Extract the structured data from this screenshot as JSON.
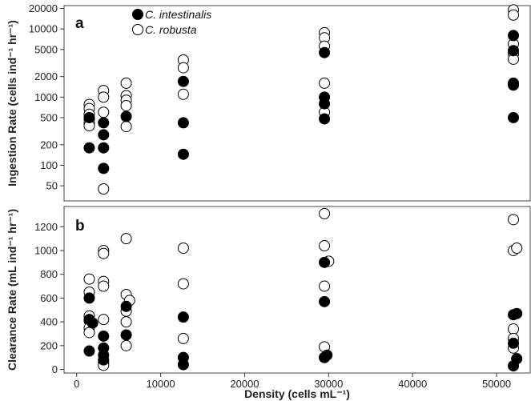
{
  "chart_data": [
    {
      "panel": "a",
      "type": "scatter",
      "ylabel": "Ingestion Rate (cells ind⁻¹ hr⁻¹)",
      "yscale": "log",
      "ylim": [
        30,
        22000
      ],
      "yticks": [
        50,
        100,
        200,
        500,
        1000,
        2000,
        5000,
        10000,
        20000
      ],
      "xlim": [
        -1500,
        54000
      ],
      "grid": false,
      "legend": "top-left",
      "series": [
        {
          "name": "C. intestinalis",
          "marker": "filled",
          "points": [
            {
              "x": 1500,
              "y": 500
            },
            {
              "x": 1500,
              "y": 180
            },
            {
              "x": 3200,
              "y": 420
            },
            {
              "x": 3200,
              "y": 280
            },
            {
              "x": 3200,
              "y": 180
            },
            {
              "x": 3200,
              "y": 90
            },
            {
              "x": 5900,
              "y": 520
            },
            {
              "x": 12700,
              "y": 1700
            },
            {
              "x": 12700,
              "y": 420
            },
            {
              "x": 12700,
              "y": 145
            },
            {
              "x": 29500,
              "y": 4500
            },
            {
              "x": 29500,
              "y": 1000
            },
            {
              "x": 29500,
              "y": 800
            },
            {
              "x": 29500,
              "y": 480
            },
            {
              "x": 52000,
              "y": 8000
            },
            {
              "x": 52000,
              "y": 4800
            },
            {
              "x": 52000,
              "y": 1600
            },
            {
              "x": 52000,
              "y": 1500
            },
            {
              "x": 52000,
              "y": 500
            }
          ]
        },
        {
          "name": "C. robusta",
          "marker": "open",
          "points": [
            {
              "x": 1500,
              "y": 780
            },
            {
              "x": 1500,
              "y": 680
            },
            {
              "x": 1500,
              "y": 560
            },
            {
              "x": 1500,
              "y": 480
            },
            {
              "x": 1500,
              "y": 420
            },
            {
              "x": 1500,
              "y": 380
            },
            {
              "x": 3200,
              "y": 1250
            },
            {
              "x": 3200,
              "y": 1000
            },
            {
              "x": 3200,
              "y": 600
            },
            {
              "x": 3200,
              "y": 45
            },
            {
              "x": 5900,
              "y": 1600
            },
            {
              "x": 5900,
              "y": 1050
            },
            {
              "x": 5900,
              "y": 900
            },
            {
              "x": 5900,
              "y": 750
            },
            {
              "x": 5900,
              "y": 370
            },
            {
              "x": 12700,
              "y": 3500
            },
            {
              "x": 12700,
              "y": 2700
            },
            {
              "x": 12700,
              "y": 1100
            },
            {
              "x": 29500,
              "y": 8800
            },
            {
              "x": 29500,
              "y": 7400
            },
            {
              "x": 29500,
              "y": 5600
            },
            {
              "x": 29500,
              "y": 1600
            },
            {
              "x": 29500,
              "y": 600
            },
            {
              "x": 52000,
              "y": 19000
            },
            {
              "x": 52000,
              "y": 16000
            },
            {
              "x": 52000,
              "y": 6000
            },
            {
              "x": 52000,
              "y": 4300
            },
            {
              "x": 52000,
              "y": 3600
            }
          ]
        }
      ]
    },
    {
      "panel": "b",
      "type": "scatter",
      "xlabel": "Density (cells mL⁻¹)",
      "ylabel": "Clearance Rate (mL ind⁻¹ hr⁻¹)",
      "ylim": [
        -30,
        1370
      ],
      "yticks": [
        0,
        200,
        400,
        600,
        800,
        1000,
        1200
      ],
      "xlim": [
        -1500,
        54000
      ],
      "xticks": [
        0,
        10000,
        20000,
        30000,
        40000,
        50000
      ],
      "grid": false,
      "series": [
        {
          "name": "C. intestinalis",
          "marker": "filled",
          "points": [
            {
              "x": 1500,
              "y": 600
            },
            {
              "x": 1500,
              "y": 420
            },
            {
              "x": 1500,
              "y": 155
            },
            {
              "x": 1900,
              "y": 390
            },
            {
              "x": 3200,
              "y": 280
            },
            {
              "x": 3200,
              "y": 180
            },
            {
              "x": 3200,
              "y": 120
            },
            {
              "x": 3200,
              "y": 80
            },
            {
              "x": 5900,
              "y": 530
            },
            {
              "x": 5900,
              "y": 290
            },
            {
              "x": 12700,
              "y": 440
            },
            {
              "x": 12700,
              "y": 100
            },
            {
              "x": 12700,
              "y": 40
            },
            {
              "x": 29500,
              "y": 900
            },
            {
              "x": 29500,
              "y": 570
            },
            {
              "x": 29800,
              "y": 120
            },
            {
              "x": 29500,
              "y": 100
            },
            {
              "x": 52000,
              "y": 460
            },
            {
              "x": 52400,
              "y": 470
            },
            {
              "x": 52000,
              "y": 220
            },
            {
              "x": 52400,
              "y": 90
            },
            {
              "x": 52000,
              "y": 30
            }
          ]
        },
        {
          "name": "C. robusta",
          "marker": "open",
          "points": [
            {
              "x": 1500,
              "y": 760
            },
            {
              "x": 1500,
              "y": 650
            },
            {
              "x": 1500,
              "y": 450
            },
            {
              "x": 1500,
              "y": 410
            },
            {
              "x": 1500,
              "y": 350
            },
            {
              "x": 1500,
              "y": 310
            },
            {
              "x": 3200,
              "y": 1000
            },
            {
              "x": 3200,
              "y": 975
            },
            {
              "x": 3200,
              "y": 740
            },
            {
              "x": 3200,
              "y": 700
            },
            {
              "x": 3200,
              "y": 420
            },
            {
              "x": 3200,
              "y": 60
            },
            {
              "x": 3200,
              "y": 35
            },
            {
              "x": 5900,
              "y": 1100
            },
            {
              "x": 5900,
              "y": 630
            },
            {
              "x": 5900,
              "y": 490
            },
            {
              "x": 5900,
              "y": 400
            },
            {
              "x": 5900,
              "y": 200
            },
            {
              "x": 6300,
              "y": 580
            },
            {
              "x": 12700,
              "y": 1020
            },
            {
              "x": 12700,
              "y": 720
            },
            {
              "x": 12700,
              "y": 260
            },
            {
              "x": 29500,
              "y": 1310
            },
            {
              "x": 29500,
              "y": 1040
            },
            {
              "x": 30000,
              "y": 910
            },
            {
              "x": 29500,
              "y": 700
            },
            {
              "x": 29500,
              "y": 190
            },
            {
              "x": 29500,
              "y": 100
            },
            {
              "x": 52000,
              "y": 1260
            },
            {
              "x": 52000,
              "y": 1000
            },
            {
              "x": 52400,
              "y": 1020
            },
            {
              "x": 52000,
              "y": 340
            },
            {
              "x": 52000,
              "y": 260
            },
            {
              "x": 52000,
              "y": 180
            }
          ]
        }
      ]
    }
  ],
  "legend": {
    "entries": [
      "C. intestinalis",
      "C. robusta"
    ]
  },
  "panel_letters": [
    "a",
    "b"
  ]
}
